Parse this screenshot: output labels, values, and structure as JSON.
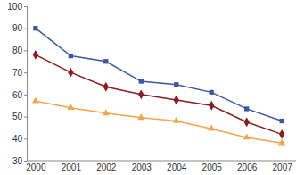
{
  "chart_data": {
    "type": "line",
    "categories": [
      "2000",
      "2001",
      "2002",
      "2003",
      "2004",
      "2005",
      "2006",
      "2007"
    ],
    "series": [
      {
        "color": "#3b57a6",
        "marker": "square",
        "line_style": "solid",
        "values": [
          90,
          77.5,
          75,
          66,
          64.5,
          61,
          53.5,
          48
        ]
      },
      {
        "color": "#8c1c1f",
        "marker": "diamond",
        "line_style": "solid",
        "values": [
          78,
          70,
          63.5,
          60,
          57.5,
          55,
          47.5,
          42
        ]
      },
      {
        "color": "#f4a54c",
        "marker": "triangle",
        "line_style": "solid",
        "values": [
          57,
          54,
          51.5,
          49.5,
          48,
          44.5,
          40.5,
          38
        ]
      }
    ],
    "ylim": [
      30,
      100
    ],
    "yticks": [
      30,
      40,
      50,
      60,
      70,
      80,
      90,
      100
    ],
    "grid": false
  }
}
